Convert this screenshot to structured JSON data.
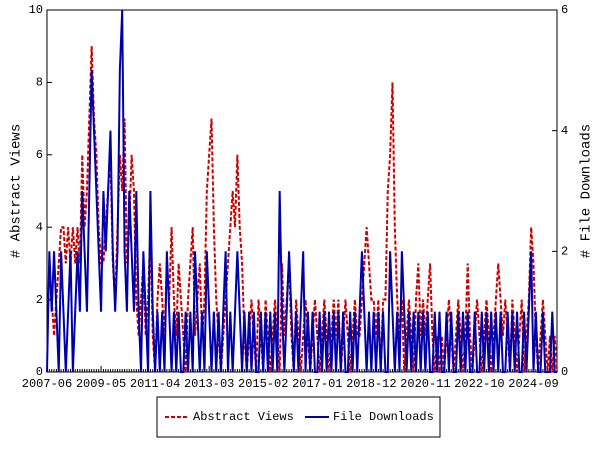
{
  "chart_data": {
    "type": "line",
    "y_label": "# Abstract Views",
    "y2_label": "# File Downloads",
    "categories": [
      "2007-06",
      null,
      null,
      null,
      null,
      null,
      null,
      null,
      null,
      null,
      null,
      null,
      null,
      null,
      null,
      null,
      null,
      null,
      null,
      null,
      null,
      null,
      null,
      "2009-05",
      null,
      null,
      null,
      null,
      null,
      null,
      null,
      null,
      null,
      null,
      null,
      null,
      null,
      null,
      null,
      null,
      null,
      null,
      null,
      null,
      null,
      null,
      "2011-04",
      null,
      null,
      null,
      null,
      null,
      null,
      null,
      null,
      null,
      null,
      null,
      null,
      null,
      null,
      null,
      null,
      null,
      null,
      null,
      null,
      null,
      null,
      "2013-03",
      null,
      null,
      null,
      null,
      null,
      null,
      null,
      null,
      null,
      null,
      null,
      null,
      null,
      null,
      null,
      null,
      null,
      null,
      null,
      null,
      null,
      null,
      "2015-02",
      null,
      null,
      null,
      null,
      null,
      null,
      null,
      null,
      null,
      null,
      null,
      null,
      null,
      null,
      null,
      null,
      null,
      null,
      null,
      null,
      null,
      null,
      "2017-01",
      null,
      null,
      null,
      null,
      null,
      null,
      null,
      null,
      null,
      null,
      null,
      null,
      null,
      null,
      null,
      null,
      null,
      null,
      null,
      null,
      null,
      null,
      "2018-12",
      null,
      null,
      null,
      null,
      null,
      null,
      null,
      null,
      null,
      null,
      null,
      null,
      null,
      null,
      null,
      null,
      null,
      null,
      null,
      null,
      null,
      null,
      "2020-11",
      null,
      null,
      null,
      null,
      null,
      null,
      null,
      null,
      null,
      null,
      null,
      null,
      null,
      null,
      null,
      null,
      null,
      null,
      null,
      null,
      null,
      null,
      "2022-10",
      null,
      null,
      null,
      null,
      null,
      null,
      null,
      null,
      null,
      null,
      null,
      null,
      null,
      null,
      null,
      null,
      null,
      null,
      null,
      null,
      null,
      null,
      "2024-09",
      null,
      null,
      null,
      null,
      null,
      null,
      null,
      null,
      null,
      null
    ],
    "series": [
      {
        "name": "Abstract Views",
        "color": "#cc0000",
        "dashed": true,
        "axis": "y",
        "values": [
          2,
          2,
          2,
          1,
          2,
          3,
          4,
          4,
          3,
          4,
          3,
          4,
          3,
          4,
          3,
          6,
          4,
          5,
          7,
          9,
          7,
          6,
          4,
          3,
          3,
          4,
          5,
          6,
          3,
          2,
          4,
          6,
          5,
          7,
          3,
          4,
          6,
          5,
          2,
          1,
          2,
          3,
          1,
          2,
          4,
          1,
          0,
          2,
          3,
          2,
          1,
          3,
          2,
          4,
          2,
          1,
          3,
          2,
          1,
          0,
          2,
          3,
          4,
          1,
          2,
          3,
          1,
          2,
          5,
          6,
          7,
          4,
          2,
          1,
          0,
          1,
          2,
          3,
          4,
          5,
          4,
          6,
          4,
          3,
          1,
          0,
          1,
          2,
          1,
          0,
          2,
          1,
          0,
          2,
          1,
          0,
          1,
          2,
          1,
          0,
          3,
          1,
          2,
          3,
          1,
          0,
          2,
          1,
          0,
          1,
          2,
          1,
          0,
          1,
          2,
          1,
          0,
          1,
          2,
          1,
          0,
          1,
          2,
          1,
          2,
          0,
          1,
          2,
          1,
          0,
          1,
          2,
          1,
          1,
          2,
          3,
          4,
          3,
          2,
          2,
          1,
          2,
          0,
          2,
          2,
          5,
          6,
          8,
          4,
          2,
          1,
          2,
          0,
          1,
          2,
          1,
          0,
          2,
          3,
          1,
          2,
          1,
          2,
          3,
          1,
          0,
          1,
          0,
          1,
          0,
          1,
          2,
          1,
          0,
          1,
          2,
          1,
          0,
          1,
          3,
          1,
          0,
          1,
          2,
          1,
          0,
          1,
          2,
          1,
          0,
          1,
          2,
          3,
          2,
          1,
          2,
          1,
          0,
          2,
          1,
          0,
          1,
          2,
          0,
          1,
          2,
          4,
          3,
          1,
          0,
          1,
          2,
          1,
          0,
          1,
          0,
          1,
          0
        ]
      },
      {
        "name": "File Downloads",
        "color": "#0000aa",
        "dashed": false,
        "axis": "y2",
        "values": [
          0,
          2,
          1,
          2,
          1,
          0,
          2,
          1,
          0,
          1,
          2,
          0,
          1,
          2,
          1,
          3,
          2,
          1,
          3,
          5,
          4,
          3,
          2,
          1,
          3,
          2,
          3,
          4,
          2,
          1,
          2,
          5,
          6,
          2,
          1,
          3,
          2,
          1,
          3,
          1,
          0,
          2,
          1,
          0,
          3,
          1,
          0,
          1,
          0,
          1,
          0,
          2,
          1,
          0,
          1,
          0,
          1,
          0,
          0,
          1,
          0,
          1,
          0,
          2,
          1,
          0,
          1,
          0,
          2,
          1,
          0,
          1,
          0,
          1,
          0,
          1,
          2,
          0,
          1,
          0,
          1,
          2,
          1,
          0,
          1,
          0,
          1,
          0,
          1,
          0,
          0,
          1,
          0,
          1,
          0,
          1,
          0,
          1,
          0,
          3,
          1,
          0,
          1,
          2,
          1,
          0,
          1,
          0,
          1,
          2,
          0,
          1,
          0,
          1,
          0,
          0,
          1,
          0,
          1,
          0,
          1,
          0,
          1,
          0,
          1,
          0,
          1,
          0,
          0,
          1,
          0,
          1,
          0,
          1,
          2,
          1,
          0,
          1,
          0,
          1,
          0,
          1,
          0,
          1,
          0,
          0,
          2,
          1,
          0,
          1,
          0,
          2,
          1,
          0,
          1,
          0,
          1,
          0,
          1,
          0,
          1,
          0,
          1,
          0,
          0,
          1,
          0,
          1,
          0,
          0,
          1,
          0,
          1,
          0,
          0,
          1,
          0,
          1,
          0,
          1,
          0,
          0,
          1,
          0,
          0,
          1,
          0,
          1,
          0,
          1,
          0,
          1,
          0,
          1,
          0,
          0,
          1,
          0,
          1,
          0,
          1,
          0,
          0,
          1,
          0,
          1,
          2,
          0,
          1,
          0,
          0,
          1,
          0,
          0,
          0,
          1,
          0,
          0
        ]
      }
    ],
    "ylim": [
      0,
      10
    ],
    "yticks": [
      0,
      2,
      4,
      6,
      8,
      10
    ],
    "y2lim": [
      0,
      6
    ],
    "y2ticks": [
      0,
      2,
      4,
      6
    ]
  }
}
